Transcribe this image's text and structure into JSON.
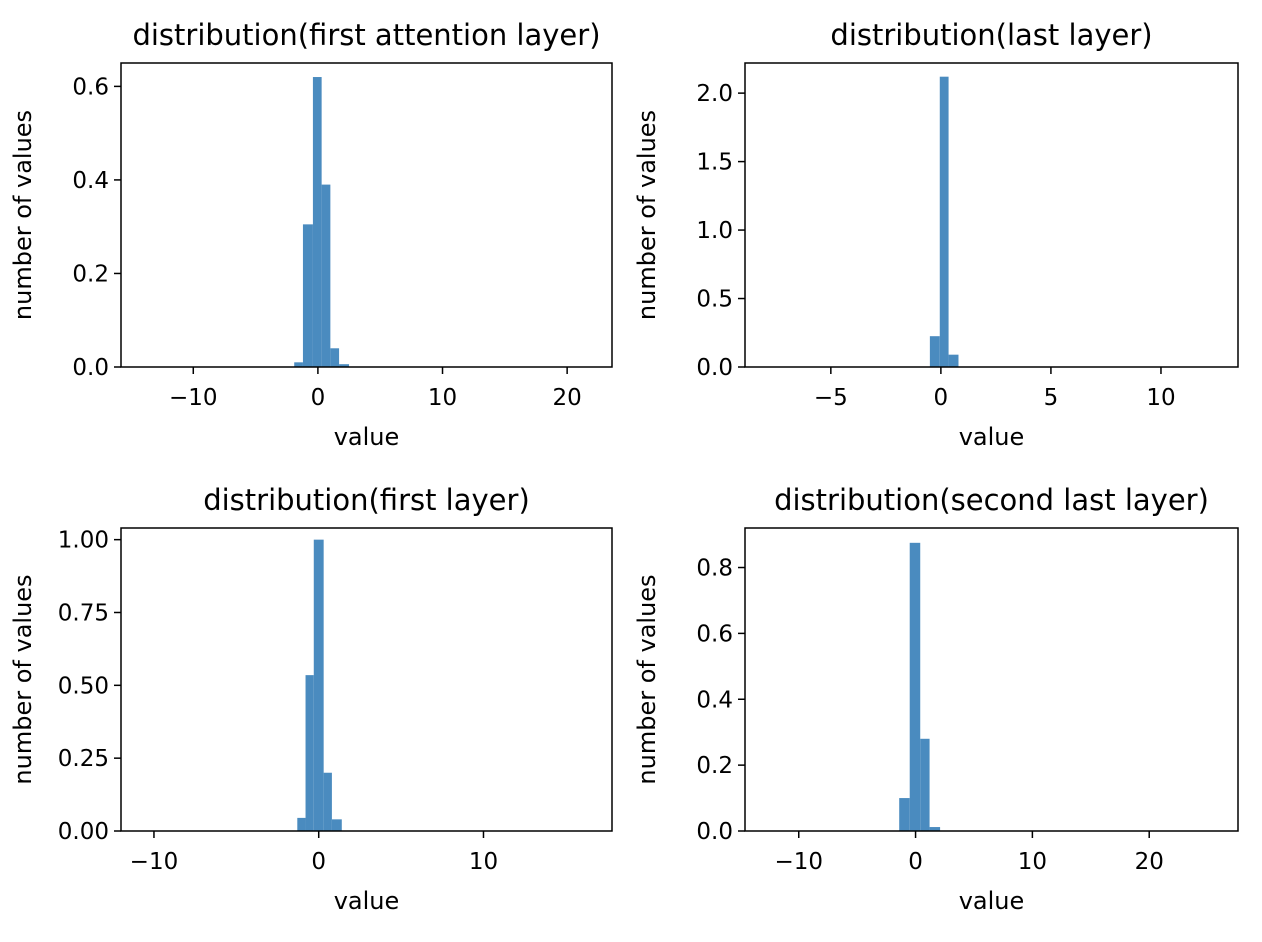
{
  "chart_data": [
    {
      "type": "bar",
      "title": "distribution(first attention layer)",
      "xlabel": "value",
      "ylabel": "number of values",
      "xlim": [
        -15.8,
        23.6
      ],
      "ylim": [
        0,
        0.65
      ],
      "xticks": [
        -10,
        0,
        10,
        20
      ],
      "xtick_labels": [
        "−10",
        "0",
        "10",
        "20"
      ],
      "yticks": [
        0.0,
        0.2,
        0.4,
        0.6
      ],
      "ytick_labels": [
        "0.0",
        "0.2",
        "0.4",
        "0.6"
      ],
      "color": "#4a8bbf",
      "bins": [
        {
          "x0": -1.9,
          "x1": -1.2,
          "value": 0.01
        },
        {
          "x0": -1.2,
          "x1": -0.4,
          "value": 0.305
        },
        {
          "x0": -0.4,
          "x1": 0.3,
          "value": 0.62
        },
        {
          "x0": 0.3,
          "x1": 1.0,
          "value": 0.39
        },
        {
          "x0": 1.0,
          "x1": 1.7,
          "value": 0.04
        },
        {
          "x0": 1.7,
          "x1": 2.5,
          "value": 0.006
        }
      ]
    },
    {
      "type": "bar",
      "title": "distribution(last layer)",
      "xlabel": "value",
      "ylabel": "number of values",
      "xlim": [
        -8.9,
        13.5
      ],
      "ylim": [
        0,
        2.22
      ],
      "xticks": [
        -5,
        0,
        5,
        10
      ],
      "xtick_labels": [
        "−5",
        "0",
        "5",
        "10"
      ],
      "yticks": [
        0.0,
        0.5,
        1.0,
        1.5,
        2.0
      ],
      "ytick_labels": [
        "0.0",
        "0.5",
        "1.0",
        "1.5",
        "2.0"
      ],
      "color": "#4a8bbf",
      "bins": [
        {
          "x0": -0.5,
          "x1": -0.05,
          "value": 0.225
        },
        {
          "x0": -0.05,
          "x1": 0.35,
          "value": 2.12
        },
        {
          "x0": 0.35,
          "x1": 0.8,
          "value": 0.09
        }
      ]
    },
    {
      "type": "bar",
      "title": "distribution(first layer)",
      "xlabel": "value",
      "ylabel": "number of values",
      "xlim": [
        -12.0,
        17.8
      ],
      "ylim": [
        0,
        1.04
      ],
      "xticks": [
        -10,
        0,
        10
      ],
      "xtick_labels": [
        "−10",
        "0",
        "10"
      ],
      "yticks": [
        0.0,
        0.25,
        0.5,
        0.75,
        1.0
      ],
      "ytick_labels": [
        "0.00",
        "0.25",
        "0.50",
        "0.75",
        "1.00"
      ],
      "color": "#4a8bbf",
      "bins": [
        {
          "x0": -1.3,
          "x1": -0.8,
          "value": 0.045
        },
        {
          "x0": -0.8,
          "x1": -0.3,
          "value": 0.535
        },
        {
          "x0": -0.3,
          "x1": 0.3,
          "value": 1.0
        },
        {
          "x0": 0.3,
          "x1": 0.8,
          "value": 0.2
        },
        {
          "x0": 0.8,
          "x1": 1.4,
          "value": 0.04
        }
      ]
    },
    {
      "type": "bar",
      "title": "distribution(second last layer)",
      "xlabel": "value",
      "ylabel": "number of values",
      "xlim": [
        -14.6,
        27.6
      ],
      "ylim": [
        0,
        0.92
      ],
      "xticks": [
        -10,
        0,
        10,
        20
      ],
      "xtick_labels": [
        "−10",
        "0",
        "10",
        "20"
      ],
      "yticks": [
        0.0,
        0.2,
        0.4,
        0.6,
        0.8
      ],
      "ytick_labels": [
        "0.0",
        "0.2",
        "0.4",
        "0.6",
        "0.8"
      ],
      "color": "#4a8bbf",
      "bins": [
        {
          "x0": -1.4,
          "x1": -0.5,
          "value": 0.1
        },
        {
          "x0": -0.5,
          "x1": 0.4,
          "value": 0.875
        },
        {
          "x0": 0.4,
          "x1": 1.2,
          "value": 0.28
        },
        {
          "x0": 1.2,
          "x1": 2.1,
          "value": 0.012
        }
      ]
    }
  ]
}
